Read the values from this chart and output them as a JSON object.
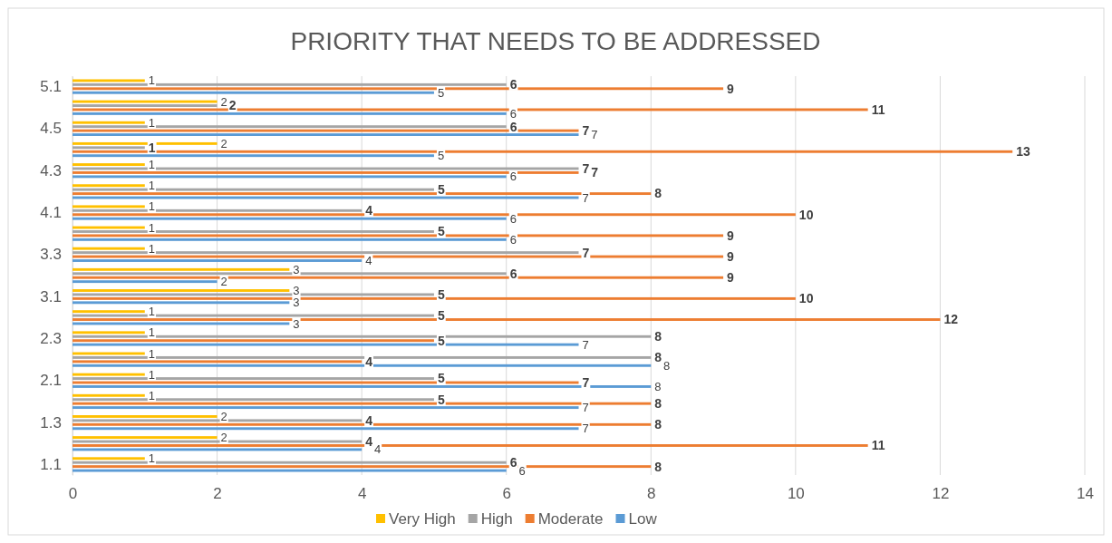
{
  "chart_data": {
    "type": "bar",
    "orientation": "horizontal",
    "title": "PRIORITY THAT NEEDS TO BE ADDRESSED",
    "categories": [
      "5.1",
      null,
      "4.5",
      null,
      "4.3",
      null,
      "4.1",
      null,
      "3.3",
      null,
      "3.1",
      null,
      "2.3",
      null,
      "2.1",
      null,
      "1.3",
      null,
      "1.1"
    ],
    "series": [
      {
        "name": "Very High",
        "color": "#ffc000",
        "values": [
          1,
          2,
          1,
          2,
          1,
          1,
          1,
          1,
          1,
          3,
          3,
          1,
          1,
          1,
          1,
          1,
          2,
          2,
          1
        ]
      },
      {
        "name": "High",
        "color": "#a5a5a5",
        "values": [
          6,
          2,
          6,
          1,
          7,
          5,
          4,
          5,
          7,
          6,
          5,
          5,
          8,
          8,
          5,
          5,
          4,
          4,
          6
        ]
      },
      {
        "name": "Moderate",
        "color": "#ed7d31",
        "values": [
          9,
          11,
          7,
          13,
          7,
          8,
          10,
          9,
          9,
          9,
          10,
          12,
          5,
          4,
          7,
          8,
          8,
          11,
          8
        ]
      },
      {
        "name": "Low",
        "color": "#5b9bd5",
        "values": [
          5,
          6,
          7,
          5,
          6,
          7,
          6,
          6,
          4,
          2,
          3,
          3,
          7,
          8,
          8,
          7,
          7,
          4,
          6
        ]
      }
    ],
    "xlim": [
      0,
      14
    ],
    "xticks": [
      0,
      2,
      4,
      6,
      8,
      10,
      12,
      14
    ],
    "grid": "x",
    "legend": "bottom",
    "data_labels": true
  }
}
